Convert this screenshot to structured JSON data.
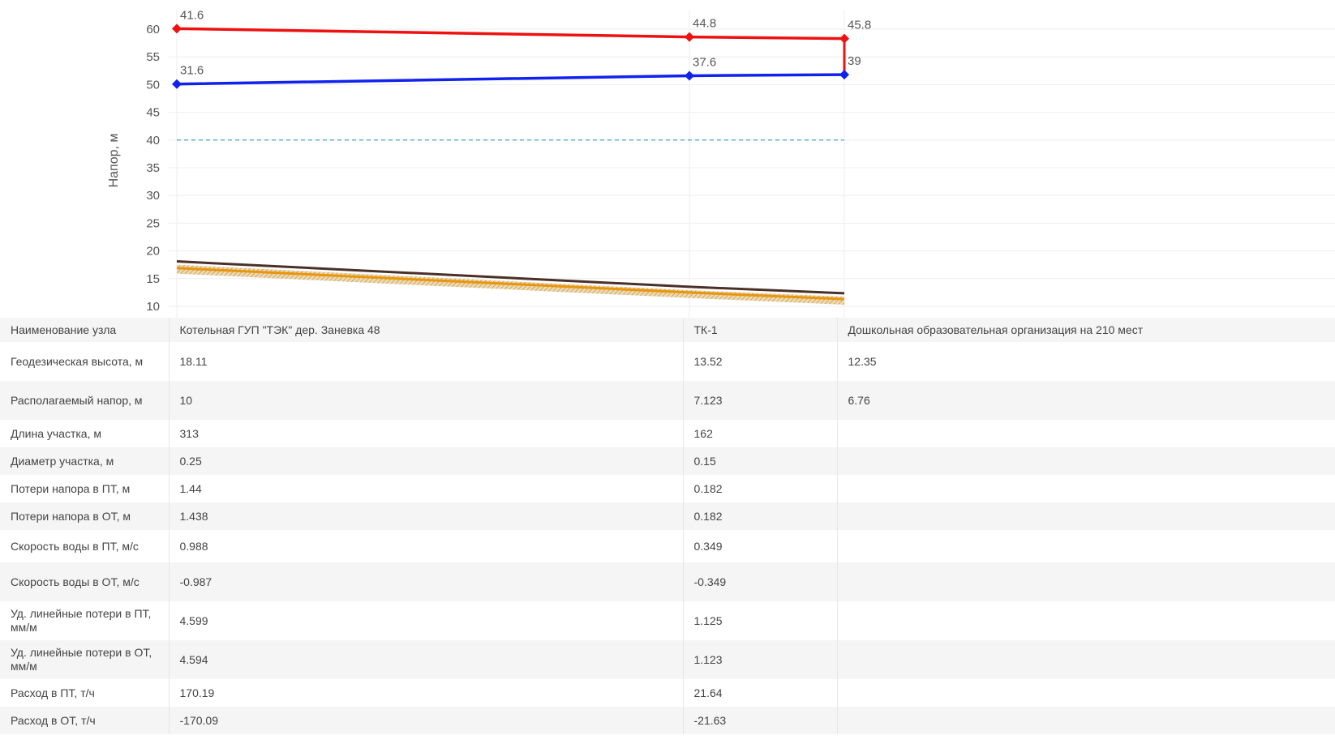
{
  "chart_data": {
    "type": "line",
    "ylabel": "Напор, м",
    "ylim": [
      10,
      60
    ],
    "yticks": [
      10,
      15,
      20,
      25,
      30,
      35,
      40,
      45,
      50,
      55,
      60
    ],
    "grid": true,
    "categories": [
      "Котельная ГУП \"ТЭК\" дер. Заневка 48",
      "ТК-1",
      "Дошкольная образовательная организация на 210 мест"
    ],
    "series": [
      {
        "key": "supply",
        "color": "#ee1111",
        "values": [
          60.1,
          58.6,
          58.3
        ],
        "labels": [
          "41.6",
          "44.8",
          "45.8"
        ]
      },
      {
        "key": "return",
        "color": "#1122ee",
        "values": [
          50.1,
          51.6,
          51.8
        ],
        "labels": [
          "31.6",
          "37.6",
          "39"
        ]
      },
      {
        "key": "dashed",
        "color": "#3399cc",
        "values": [
          40,
          40,
          40
        ]
      },
      {
        "key": "ground",
        "color": "#4a3028",
        "values": [
          18.11,
          13.52,
          12.35
        ]
      },
      {
        "key": "ground-hatch",
        "color": "#e8960c",
        "values": [
          16.9,
          12.5,
          11.3
        ]
      }
    ]
  },
  "table": {
    "rows": [
      {
        "label": "Наименование узла",
        "cells": [
          "Котельная ГУП \"ТЭК\" дер. Заневка 48",
          "ТК-1",
          "Дошкольная образовательная организация на 210 мест"
        ]
      },
      {
        "label": "Геодезическая высота, м",
        "cells": [
          "18.11",
          "13.52",
          "12.35"
        ]
      },
      {
        "label": "Располагаемый напор, м",
        "cells": [
          "10",
          "7.123",
          "6.76"
        ]
      },
      {
        "label": "Длина участка, м",
        "cells": [
          "313",
          "162",
          ""
        ]
      },
      {
        "label": "Диаметр участка, м",
        "cells": [
          "0.25",
          "0.15",
          ""
        ]
      },
      {
        "label": "Потери напора в ПТ, м",
        "cells": [
          "1.44",
          "0.182",
          ""
        ]
      },
      {
        "label": "Потери напора в ОТ, м",
        "cells": [
          "1.438",
          "0.182",
          ""
        ]
      },
      {
        "label": "Скорость воды в ПТ, м/с",
        "cells": [
          "0.988",
          "0.349",
          ""
        ]
      },
      {
        "label": "Скорость воды в ОТ, м/с",
        "cells": [
          "-0.987",
          "-0.349",
          ""
        ]
      },
      {
        "label": "Уд. линейные потери в ПТ, мм/м",
        "cells": [
          "4.599",
          "1.125",
          ""
        ]
      },
      {
        "label": "Уд. линейные потери в ОТ, мм/м",
        "cells": [
          "4.594",
          "1.123",
          ""
        ]
      },
      {
        "label": "Расход в ПТ, т/ч",
        "cells": [
          "170.19",
          "21.64",
          ""
        ]
      },
      {
        "label": "Расход в ОТ, т/ч",
        "cells": [
          "-170.09",
          "-21.63",
          ""
        ]
      }
    ]
  }
}
